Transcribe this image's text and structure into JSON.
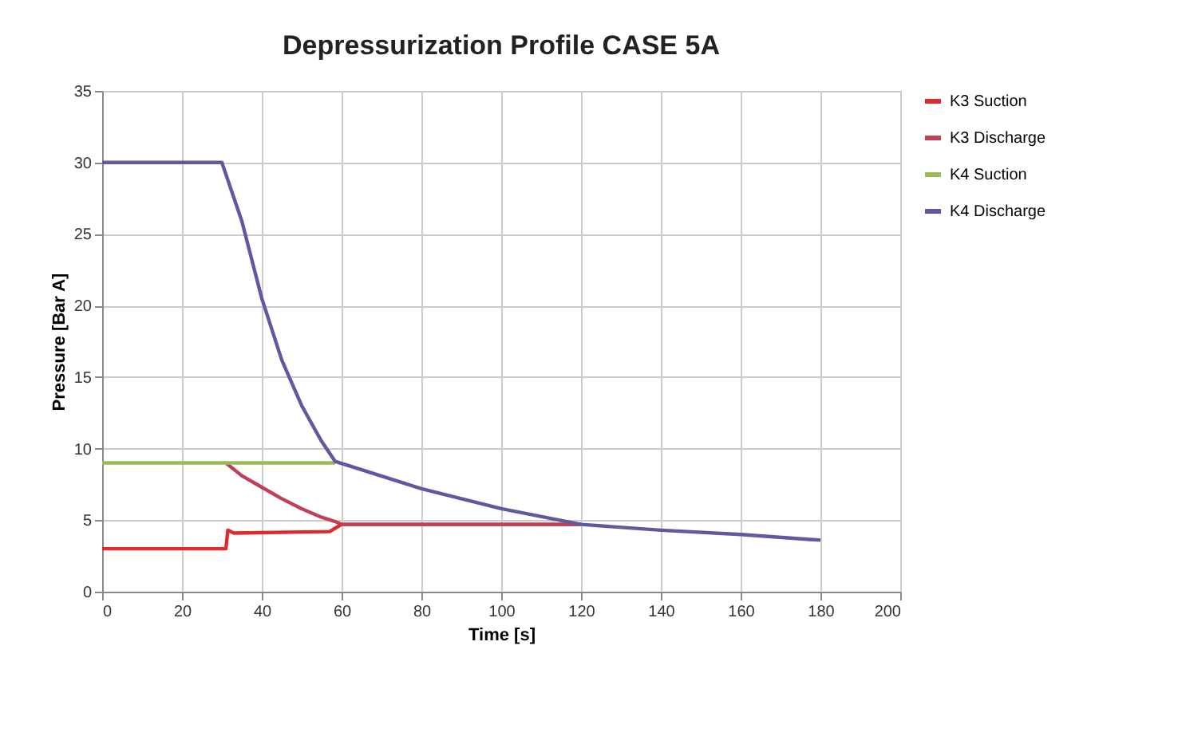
{
  "chart_data": {
    "type": "line",
    "title": "Depressurization Profile CASE 5A",
    "xlabel": "Time [s]",
    "ylabel": "Pressure [Bar A]",
    "xlim": [
      0,
      200
    ],
    "xticks": [
      0,
      20,
      40,
      60,
      80,
      100,
      120,
      140,
      160,
      180,
      200
    ],
    "ylim": [
      0,
      35
    ],
    "yticks": [
      0,
      5,
      10,
      15,
      20,
      25,
      30,
      35
    ],
    "grid": true,
    "legend": "right",
    "marker": "none",
    "line_style": "solid",
    "series": [
      {
        "name": "K3 Suction",
        "color": "#e0282e",
        "x": [
          0,
          30,
          31,
          31.5,
          33,
          57,
          60,
          120
        ],
        "values": [
          3,
          3,
          3,
          4.3,
          4.1,
          4.2,
          4.7,
          4.7
        ]
      },
      {
        "name": "K3 Discharge",
        "color": "#c0405a",
        "x": [
          31,
          35,
          40,
          45,
          50,
          55,
          58.4,
          60,
          120
        ],
        "values": [
          9,
          8.1,
          7.3,
          6.5,
          5.8,
          5.2,
          4.9,
          4.7,
          4.7
        ]
      },
      {
        "name": "K4 Suction",
        "color": "#9bbb59",
        "x": [
          0,
          58.4
        ],
        "values": [
          9,
          9
        ]
      },
      {
        "name": "K4 Discharge",
        "color": "#5f5aa0",
        "x": [
          0,
          30,
          35,
          40,
          45,
          50,
          55,
          58.4,
          80,
          100,
          120,
          140,
          160,
          180
        ],
        "values": [
          30,
          30,
          25.9,
          20.5,
          16.2,
          13,
          10.5,
          9.1,
          7.2,
          5.8,
          4.7,
          4.3,
          4.0,
          3.6
        ]
      }
    ]
  }
}
